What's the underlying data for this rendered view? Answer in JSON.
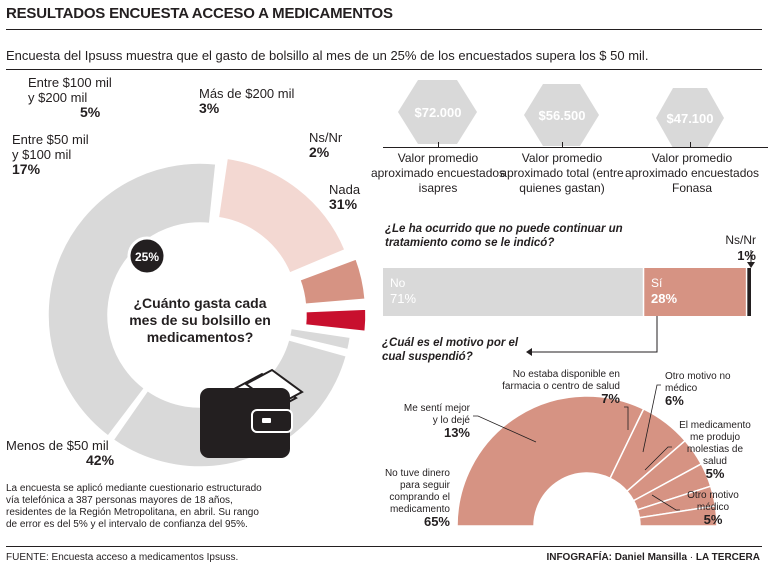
{
  "header": {
    "title": "RESULTADOS ENCUESTA ACCESO A MEDICAMENTOS",
    "subtitle": "Encuesta del Ipsuss muestra que el gasto de bolsillo al mes de un 25% de los encuestados supera los $ 50 mil."
  },
  "chart_data": [
    {
      "type": "pie",
      "title": "¿Cuánto gasta cada mes de su bolsillo en medicamentos?",
      "categories": [
        "Menos de $50 mil",
        "Entre $50 mil y $100 mil",
        "Entre $100 mil y $200 mil",
        "Más de $200 mil",
        "Ns/Nr",
        "Nada"
      ],
      "values": [
        42,
        17,
        5,
        3,
        2,
        31
      ],
      "value_labels": [
        "42%",
        "17%",
        "5%",
        "3%",
        "2%",
        "31%"
      ],
      "highlight_label": "25%",
      "colors": [
        "#d9d9d9",
        "#f3d8d2",
        "#d69383",
        "#c8102e",
        "#d9d9d9",
        "#d9d9d9"
      ]
    },
    {
      "type": "bar",
      "title": "¿Le ha ocurrido que no puede continuar un tratamiento como se le indicó?",
      "categories": [
        "No",
        "Sí",
        "Ns/Nr"
      ],
      "values": [
        71,
        28,
        1
      ],
      "value_labels": [
        "71%",
        "28%",
        "1%"
      ],
      "colors": [
        "#d9d9d9",
        "#d69383",
        "#231f20"
      ]
    },
    {
      "type": "pie",
      "title": "¿Cuál es el motivo por el cual suspendió?",
      "categories": [
        "No tuve dinero para seguir comprando el medicamento",
        "Me sentí mejor y lo dejé",
        "No estaba disponible en farmacia o centro de salud",
        "Otro motivo no médico",
        "El medicamento me produjo molestias de salud",
        "Otro motivo médico"
      ],
      "values": [
        65,
        13,
        7,
        6,
        5,
        5
      ],
      "value_labels": [
        "65%",
        "13%",
        "7%",
        "6%",
        "5%",
        "5%"
      ],
      "colors": [
        "#d69383"
      ]
    }
  ],
  "donut_labels": {
    "menos50": {
      "text": "Menos de $50 mil",
      "pct": "42%"
    },
    "entre50": {
      "line1": "Entre $50 mil",
      "line2": "y $100 mil",
      "pct": "17%"
    },
    "entre100": {
      "line1": "Entre $100 mil",
      "line2": "y $200 mil",
      "pct": "5%"
    },
    "mas200": {
      "text": "Más de $200 mil",
      "pct": "3%"
    },
    "nsnr": {
      "text": "Ns/Nr",
      "pct": "2%"
    },
    "nada": {
      "text": "Nada",
      "pct": "31%"
    },
    "center": "¿Cuánto gasta cada mes de su bolsillo en medicamentos?",
    "badge": "25%"
  },
  "hexagons": [
    {
      "value": "$72.000",
      "caption": "Valor promedio aproximado encuestados isapres"
    },
    {
      "value": "$56.500",
      "caption": "Valor promedio aproximado total (entre quienes gastan)"
    },
    {
      "value": "$47.100",
      "caption": "Valor promedio aproximado encuestados Fonasa"
    }
  ],
  "treatment": {
    "question": "¿Le ha ocurrido que no puede continuar un tratamiento como se le indicó?",
    "no_label": "No",
    "no_pct": "71%",
    "si_label": "Sí",
    "si_pct": "28%",
    "ns_label": "Ns/Nr",
    "ns_pct": "1%"
  },
  "reasons": {
    "question": "¿Cuál es el motivo por el cual suspendió?",
    "items": [
      {
        "label": "No tuve dinero para seguir comprando el medicamento",
        "pct": "65%"
      },
      {
        "label": "Me sentí mejor y lo dejé",
        "pct": "13%"
      },
      {
        "label": "No estaba disponible en farmacia o centro de salud",
        "pct": "7%"
      },
      {
        "label": "Otro motivo no médico",
        "pct": "6%"
      },
      {
        "label": "El medicamento me produjo molestias de salud",
        "pct": "5%"
      },
      {
        "label": "Otro motivo médico",
        "pct": "5%"
      }
    ]
  },
  "methodology": "La encuesta se aplicó mediante cuestionario estructurado vía telefónica a 387 personas mayores de 18 años, residentes de la Región Metropolitana, en abril. Su rango de error es del 5% y el intervalo de confianza del 95%.",
  "footer": {
    "source": "FUENTE: Encuesta acceso a medicamentos Ipsuss.",
    "credit": "INFOGRAFÍA: Daniel Mansilla",
    "brand": "LA TERCERA"
  }
}
